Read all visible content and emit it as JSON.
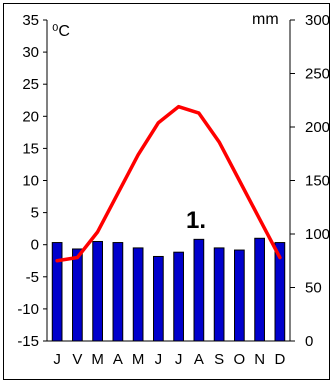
{
  "chart_data": {
    "type": "climate-diagram",
    "title": "",
    "annotation": "1.",
    "left_axis": {
      "unit_label": "⁰C",
      "ylim": [
        -15,
        35
      ],
      "ticks": [
        35,
        30,
        25,
        20,
        15,
        10,
        5,
        0,
        -5,
        -10,
        -15
      ]
    },
    "right_axis": {
      "unit_label": "mm",
      "ylim": [
        0,
        300
      ],
      "ticks": [
        300,
        250,
        200,
        150,
        100,
        50,
        0
      ]
    },
    "categories": [
      "J",
      "V",
      "M",
      "A",
      "M",
      "J",
      "J",
      "A",
      "S",
      "O",
      "N",
      "D"
    ],
    "series": [
      {
        "kind": "line",
        "axis": "left",
        "color": "#ff0000",
        "values": [
          -2.5,
          -2,
          2,
          8,
          14,
          19,
          21.5,
          20.5,
          16,
          10,
          4,
          -2
        ]
      },
      {
        "kind": "bar",
        "axis": "right",
        "color": "#0000cc",
        "values": [
          92,
          86,
          93,
          92,
          87,
          79,
          83,
          95,
          87,
          85,
          96,
          92
        ]
      }
    ],
    "grid": false
  }
}
